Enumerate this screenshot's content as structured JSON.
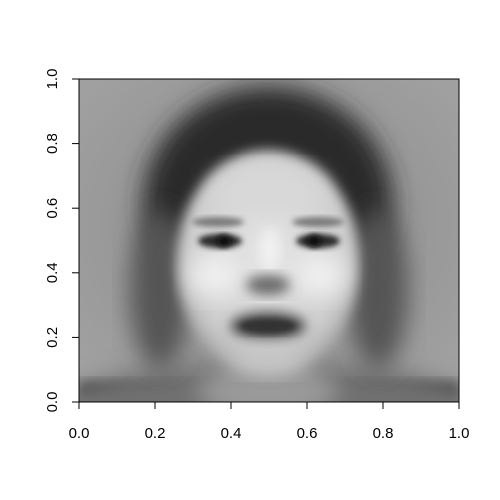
{
  "chart_data": {
    "type": "heatmap",
    "title": "",
    "xlabel": "",
    "ylabel": "",
    "xlim": [
      0,
      1
    ],
    "ylim": [
      0,
      1
    ],
    "x_ticks": [
      "0.0",
      "0.2",
      "0.4",
      "0.6",
      "0.8",
      "1.0"
    ],
    "y_ticks": [
      "0.0",
      "0.2",
      "0.4",
      "0.6",
      "0.8",
      "1.0"
    ],
    "colormap": "grayscale",
    "image_content": "blurred grayscale average face",
    "grid": false,
    "legend": "none"
  }
}
